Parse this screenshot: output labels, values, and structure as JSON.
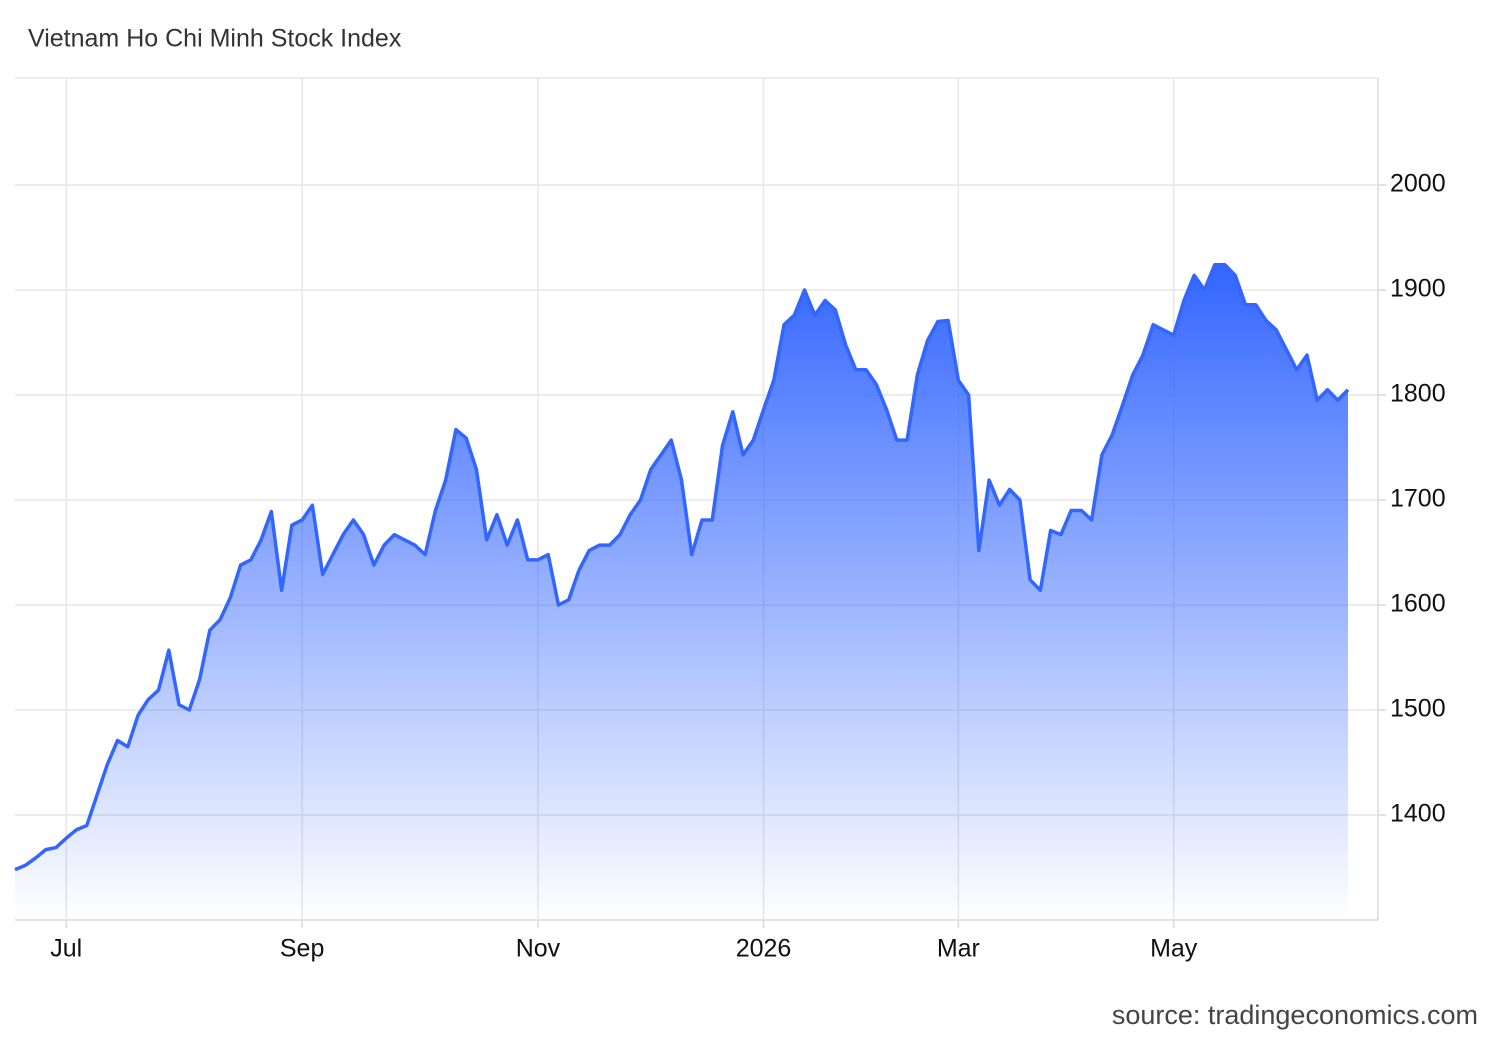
{
  "chart_data": {
    "type": "area",
    "title": "Vietnam Ho Chi Minh Stock Index",
    "source": "source: tradingeconomics.com",
    "color": "#3366ff",
    "categories": [
      null,
      null,
      null,
      null,
      null,
      "Jul",
      null,
      null,
      null,
      null,
      null,
      null,
      null,
      null,
      null,
      null,
      null,
      null,
      null,
      null,
      null,
      null,
      null,
      null,
      null,
      null,
      null,
      null,
      "Sep",
      null,
      null,
      null,
      null,
      null,
      null,
      null,
      null,
      null,
      null,
      null,
      null,
      null,
      null,
      null,
      null,
      null,
      null,
      null,
      null,
      null,
      null,
      "Nov",
      null,
      null,
      null,
      null,
      null,
      null,
      null,
      null,
      null,
      null,
      null,
      null,
      null,
      null,
      null,
      null,
      null,
      null,
      null,
      null,
      null,
      "2026",
      null,
      null,
      null,
      null,
      null,
      null,
      null,
      null,
      null,
      null,
      null,
      null,
      null,
      null,
      null,
      null,
      null,
      null,
      "Mar",
      null,
      null,
      null,
      null,
      null,
      null,
      null,
      null,
      null,
      null,
      null,
      null,
      null,
      null,
      null,
      null,
      null,
      null,
      null,
      null,
      "May",
      null,
      null,
      null,
      null,
      null,
      null,
      null,
      null,
      null,
      null,
      null,
      null,
      null,
      null,
      null,
      null,
      null
    ],
    "values": [
      1348,
      1352,
      1359,
      1367,
      1369,
      1378,
      1386,
      1390,
      1419,
      1448,
      1471,
      1465,
      1495,
      1510,
      1519,
      1557,
      1505,
      1500,
      1529,
      1576,
      1586,
      1607,
      1638,
      1643,
      1662,
      1689,
      1614,
      1676,
      1681,
      1695,
      1629,
      1648,
      1667,
      1681,
      1667,
      1638,
      1657,
      1667,
      1662,
      1657,
      1648,
      1690,
      1719,
      1767,
      1759,
      1729,
      1662,
      1686,
      1657,
      1681,
      1643,
      1643,
      1648,
      1600,
      1605,
      1633,
      1652,
      1657,
      1657,
      1667,
      1686,
      1700,
      1729,
      1743,
      1757,
      1719,
      1648,
      1681,
      1681,
      1752,
      1784,
      1743,
      1757,
      1786,
      1814,
      1867,
      1876,
      1900,
      1876,
      1890,
      1881,
      1848,
      1824,
      1824,
      1810,
      1786,
      1757,
      1757,
      1819,
      1852,
      1870,
      1871,
      1814,
      1800,
      1652,
      1719,
      1695,
      1710,
      1700,
      1624,
      1614,
      1671,
      1667,
      1690,
      1690,
      1681,
      1743,
      1762,
      1790,
      1819,
      1838,
      1867,
      1862,
      1857,
      1890,
      1914,
      1900,
      1924,
      1924,
      1914,
      1886,
      1886,
      1871,
      1862,
      1843,
      1824,
      1838,
      1795,
      1805,
      1795,
      1805
    ],
    "ylim": [
      1300,
      2100
    ],
    "yticks": [
      1400,
      1500,
      1600,
      1700,
      1800,
      1900,
      2000
    ],
    "grid": true
  }
}
